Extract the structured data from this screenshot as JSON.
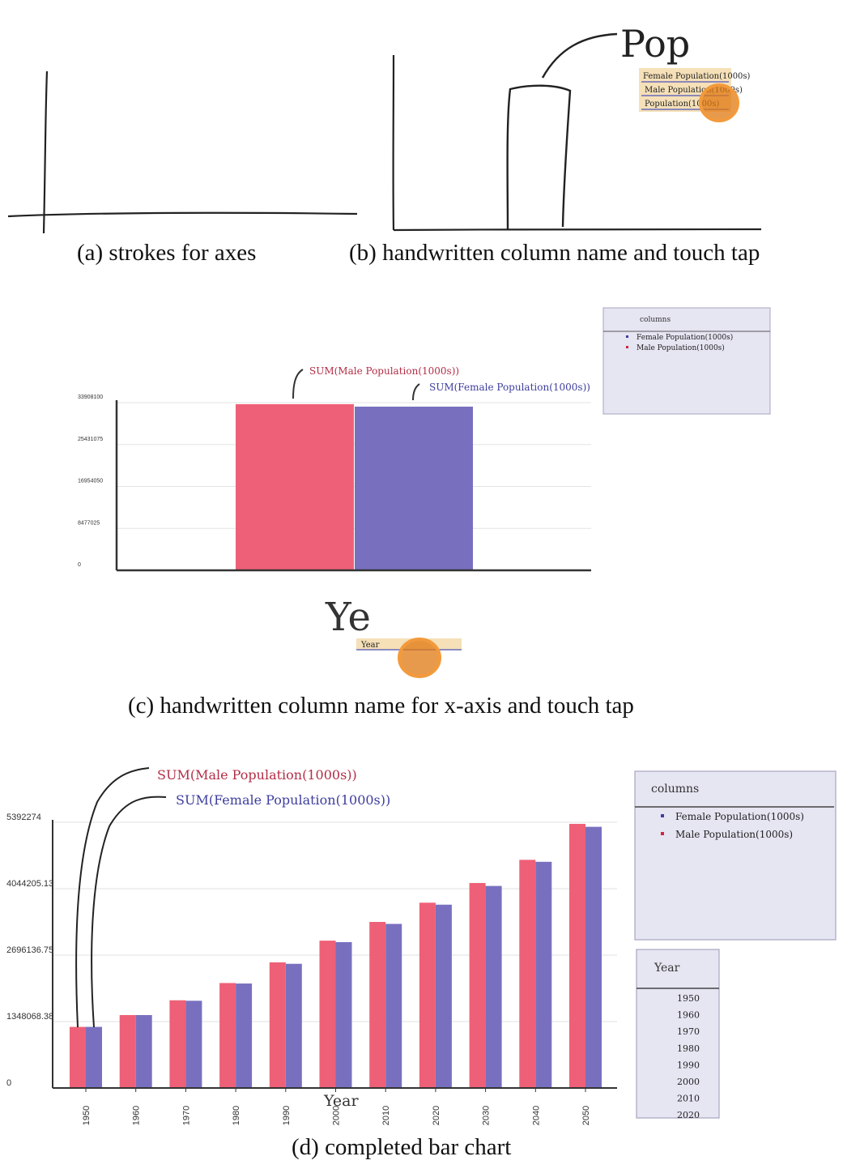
{
  "colors": {
    "male": "#ee6077",
    "female": "#7870bf",
    "male_ink": "#b32d45",
    "female_ink": "#3d3d9e",
    "tap": "#e07810",
    "panel_bg": "#e6e5f2",
    "highlight": "#f5e0b8"
  },
  "captions": {
    "a": "(a) strokes for axes",
    "b": "(b) handwritten column name and touch tap",
    "c": "(c) handwritten column name for x-axis and touch tap",
    "d": "(d) completed bar chart"
  },
  "panel_b": {
    "handwriting": "Pop",
    "suggestions": [
      "Female Population(1000s)",
      "Male Population(1000s)",
      "Population(1000s)"
    ]
  },
  "panel_c": {
    "handwriting": "Ye",
    "suggestion": "Year",
    "columns_title": "columns",
    "columns": [
      "Female Population(1000s)",
      "Male Population(1000s)"
    ],
    "label_male": "SUM(Male Population(1000s))",
    "label_female": "SUM(Female Population(1000s))"
  },
  "panel_d": {
    "label_male": "SUM(Male Population(1000s))",
    "label_female": "SUM(Female Population(1000s))",
    "xlabel": "Year",
    "columns_title": "columns",
    "columns": [
      "Female Population(1000s)",
      "Male Population(1000s)"
    ],
    "year_title": "Year",
    "years": [
      "1950",
      "1960",
      "1970",
      "1980",
      "1990",
      "2000",
      "2010",
      "2020"
    ]
  },
  "chart_data": [
    {
      "type": "bar",
      "categories": [
        ""
      ],
      "series": [
        {
          "name": "SUM(Male Population(1000s))",
          "values": [
            33600000
          ]
        },
        {
          "name": "SUM(Female Population(1000s))",
          "values": [
            33100000
          ]
        }
      ],
      "yticks": [
        "0",
        "8477025",
        "16954050",
        "25431075",
        "33908100"
      ],
      "ylim": [
        0,
        33908100
      ],
      "xlabel": "",
      "ylabel": "",
      "grid": true,
      "legend": "top-right"
    },
    {
      "type": "bar",
      "categories": [
        "1950",
        "1960",
        "1970",
        "1980",
        "1990",
        "2000",
        "2010",
        "2020",
        "2030",
        "2040",
        "2050"
      ],
      "series": [
        {
          "name": "SUM(Male Population(1000s))",
          "values": [
            1240000,
            1480000,
            1780000,
            2130000,
            2550000,
            2990000,
            3370000,
            3760000,
            4160000,
            4630000,
            5360000
          ]
        },
        {
          "name": "SUM(Female Population(1000s))",
          "values": [
            1240000,
            1480000,
            1770000,
            2120000,
            2520000,
            2960000,
            3330000,
            3720000,
            4100000,
            4590000,
            5300000
          ]
        }
      ],
      "yticks": [
        "0",
        "1348068.38",
        "2696136.75",
        "4044205.13",
        "5392274"
      ],
      "ylim": [
        0,
        5392274
      ],
      "xlabel": "Year",
      "ylabel": "",
      "grid": true,
      "legend": "right"
    }
  ]
}
